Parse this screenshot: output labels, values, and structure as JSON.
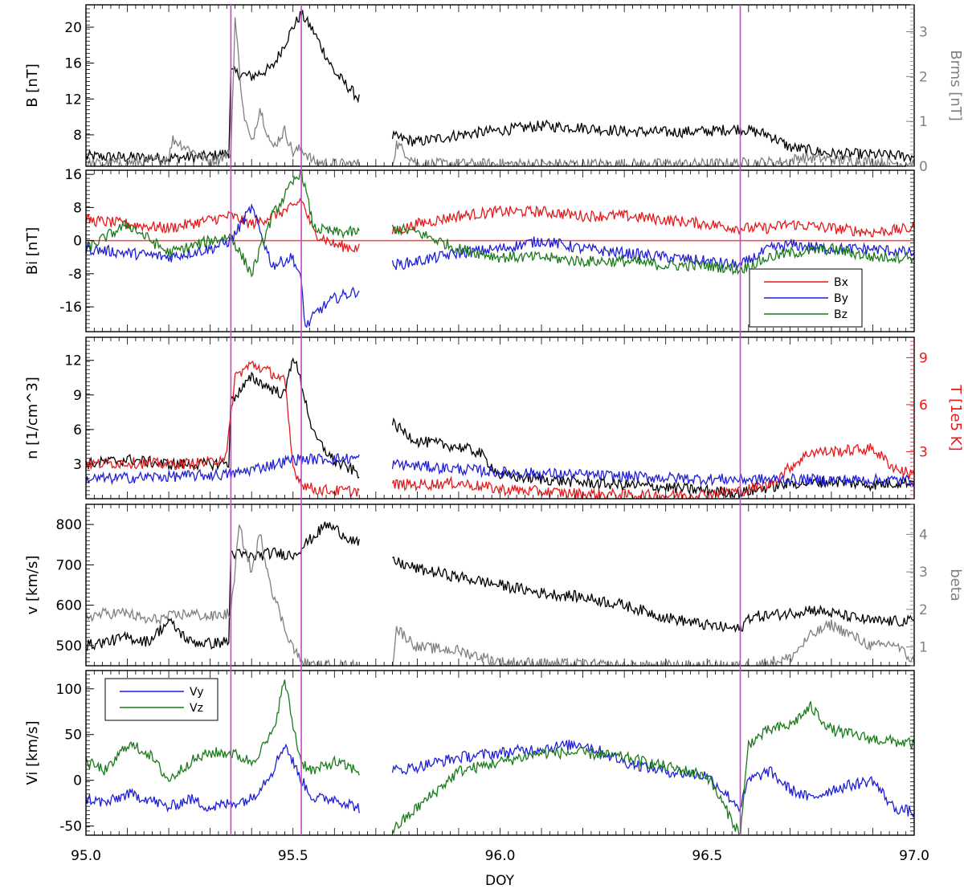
{
  "figure": {
    "xlabel": "DOY",
    "x_ticks": [
      "95.0",
      "95.5",
      "96.0",
      "96.5",
      "97.0"
    ],
    "vertical_markers": [
      95.35,
      95.52,
      96.58
    ],
    "colors": {
      "black": "#000000",
      "gray": "#808080",
      "red": "#e41a1c",
      "blue": "#1f1fd6",
      "green": "#1b7a1b",
      "marker": "#cc44cc",
      "zero_line": "#ff4040"
    }
  },
  "chart_data": [
    {
      "type": "line",
      "ylabel": "B [nT]",
      "y2label": "Brms [nT]",
      "xlim": [
        95.0,
        97.0
      ],
      "ylim": [
        4.5,
        22.5
      ],
      "y2lim": [
        0,
        3.6
      ],
      "yticks": [
        "8",
        "12",
        "16",
        "20"
      ],
      "y2ticks": [
        "0",
        "1",
        "2",
        "3"
      ],
      "data_gap": [
        95.66,
        95.74
      ],
      "series": [
        {
          "axis": "left",
          "color": "black",
          "x": [
            95.0,
            95.1,
            95.2,
            95.3,
            95.345,
            95.35,
            95.4,
            95.45,
            95.5,
            95.52,
            95.55,
            95.6,
            95.66,
            95.74,
            95.8,
            95.9,
            96.0,
            96.1,
            96.2,
            96.3,
            96.4,
            96.5,
            96.58,
            96.65,
            96.7,
            96.8,
            96.9,
            97.0
          ],
          "values": [
            5.6,
            5.5,
            5.4,
            5.6,
            6.0,
            15.0,
            14.5,
            15.5,
            20.0,
            21.5,
            19.5,
            15.0,
            12.0,
            7.8,
            7.2,
            8.0,
            8.5,
            9.0,
            8.8,
            8.4,
            8.3,
            8.4,
            8.7,
            8.0,
            6.6,
            5.9,
            5.8,
            5.6
          ]
        },
        {
          "axis": "right",
          "color": "gray",
          "x": [
            95.0,
            95.15,
            95.2,
            95.21,
            95.3,
            95.35,
            95.36,
            95.38,
            95.4,
            95.42,
            95.45,
            95.48,
            95.5,
            95.52,
            95.55,
            95.6,
            95.74,
            95.75,
            95.8,
            96.0,
            96.5,
            96.7,
            96.72,
            97.0
          ],
          "values": [
            0.05,
            0.1,
            0.2,
            0.6,
            0.1,
            0.3,
            3.3,
            1.2,
            0.5,
            1.3,
            0.4,
            0.8,
            0.3,
            0.4,
            0.1,
            0.05,
            0.05,
            0.5,
            0.05,
            0.05,
            0.05,
            0.1,
            0.2,
            0.05
          ]
        }
      ]
    },
    {
      "type": "line",
      "ylabel": "Bi [nT]",
      "xlim": [
        95.0,
        97.0
      ],
      "ylim": [
        -22,
        17
      ],
      "yticks": [
        "-16",
        "-8",
        "0",
        "8",
        "16"
      ],
      "zero_line": true,
      "legend": {
        "position": "bottom-right",
        "entries": [
          "Bx",
          "By",
          "Bz"
        ]
      },
      "data_gap": [
        95.66,
        95.74
      ],
      "series": [
        {
          "name": "Bx",
          "color": "red",
          "x": [
            95.0,
            95.1,
            95.2,
            95.3,
            95.35,
            95.4,
            95.45,
            95.5,
            95.52,
            95.55,
            95.6,
            95.66,
            95.74,
            95.8,
            95.9,
            96.0,
            96.1,
            96.2,
            96.3,
            96.4,
            96.5,
            96.58,
            96.65,
            96.7,
            96.8,
            96.9,
            97.0
          ],
          "values": [
            5,
            4,
            3,
            5,
            6,
            4,
            6,
            8,
            10,
            2,
            -1,
            -2,
            2,
            4,
            6,
            7,
            7,
            6,
            6,
            5,
            4,
            3,
            3,
            4,
            3,
            2,
            3
          ]
        },
        {
          "name": "By",
          "color": "blue",
          "x": [
            95.0,
            95.1,
            95.2,
            95.3,
            95.35,
            95.4,
            95.45,
            95.5,
            95.52,
            95.53,
            95.56,
            95.6,
            95.66,
            95.74,
            95.8,
            95.9,
            96.0,
            96.1,
            96.2,
            96.3,
            96.4,
            96.5,
            96.58,
            96.65,
            96.7,
            96.8,
            96.9,
            97.0
          ],
          "values": [
            -2,
            -3,
            -4,
            -2,
            0,
            8,
            -6,
            -4,
            -10,
            -21,
            -17,
            -14,
            -12,
            -6,
            -5,
            -3,
            -2,
            0,
            -2,
            -3,
            -4,
            -5,
            -6,
            -2,
            -1,
            -2,
            -2,
            -3
          ]
        },
        {
          "name": "Bz",
          "color": "green",
          "x": [
            95.0,
            95.1,
            95.2,
            95.3,
            95.35,
            95.4,
            95.45,
            95.5,
            95.52,
            95.55,
            95.6,
            95.66,
            95.74,
            95.8,
            95.9,
            96.0,
            96.1,
            96.2,
            96.3,
            96.4,
            96.5,
            96.58,
            96.65,
            96.7,
            96.8,
            96.9,
            97.0
          ],
          "values": [
            -2,
            4,
            -3,
            0,
            1,
            -8,
            6,
            14,
            17,
            3,
            2,
            2,
            3,
            2,
            -2,
            -4,
            -4,
            -5,
            -5,
            -6,
            -6,
            -7,
            -4,
            -3,
            -2,
            -4,
            -4
          ]
        }
      ]
    },
    {
      "type": "line",
      "ylabel": "n [1/cm^3]",
      "y2label": "T [1e5 K]",
      "xlim": [
        95.0,
        97.0
      ],
      "ylim": [
        0,
        14
      ],
      "y2lim": [
        0,
        10.3
      ],
      "yticks": [
        "3",
        "6",
        "9",
        "12"
      ],
      "y2ticks": [
        "3",
        "6",
        "9"
      ],
      "data_gap": [
        95.66,
        95.74
      ],
      "series": [
        {
          "axis": "left",
          "color": "black",
          "x": [
            95.0,
            95.1,
            95.2,
            95.3,
            95.345,
            95.35,
            95.4,
            95.45,
            95.48,
            95.5,
            95.52,
            95.55,
            95.6,
            95.66,
            95.74,
            95.8,
            95.9,
            95.95,
            96.0,
            96.2,
            96.4,
            96.5,
            96.58,
            96.65,
            96.7,
            96.8,
            96.9,
            97.0
          ],
          "values": [
            3.0,
            3.4,
            3.0,
            3.0,
            3.1,
            8.5,
            10.5,
            9.5,
            9.0,
            12.5,
            10.0,
            5.5,
            3.2,
            2.2,
            6.5,
            5.0,
            4.5,
            4.0,
            2.0,
            1.4,
            1.0,
            0.7,
            0.5,
            1.0,
            1.3,
            1.5,
            1.2,
            1.5
          ]
        },
        {
          "axis": "right",
          "color": "red",
          "x": [
            95.0,
            95.1,
            95.2,
            95.3,
            95.34,
            95.36,
            95.4,
            95.45,
            95.48,
            95.5,
            95.52,
            95.55,
            95.6,
            95.66,
            95.74,
            95.8,
            95.9,
            96.0,
            96.2,
            96.4,
            96.5,
            96.58,
            96.65,
            96.7,
            96.75,
            96.8,
            96.9,
            96.95,
            97.0
          ],
          "values": [
            2.2,
            2.3,
            2.2,
            2.3,
            2.8,
            7.8,
            8.6,
            8.0,
            7.5,
            2.0,
            1.0,
            0.6,
            0.5,
            0.5,
            0.9,
            0.9,
            1.0,
            0.6,
            0.3,
            0.2,
            0.3,
            0.5,
            0.9,
            2.0,
            3.0,
            3.0,
            3.2,
            2.0,
            1.5
          ]
        },
        {
          "axis": "left",
          "color": "blue",
          "x": [
            95.0,
            95.35,
            95.5,
            95.66,
            95.74,
            96.0,
            96.5,
            97.0
          ],
          "values": [
            1.7,
            2.1,
            3.4,
            3.5,
            3.0,
            2.3,
            1.7,
            1.6
          ]
        }
      ]
    },
    {
      "type": "line",
      "ylabel": "v [km/s]",
      "y2label": "beta",
      "xlim": [
        95.0,
        97.0
      ],
      "ylim": [
        450,
        850
      ],
      "y2lim": [
        0.5,
        4.8
      ],
      "yticks": [
        "500",
        "600",
        "700",
        "800"
      ],
      "y2ticks": [
        "1",
        "2",
        "3",
        "4"
      ],
      "data_gap": [
        95.66,
        95.74
      ],
      "series": [
        {
          "axis": "left",
          "color": "black",
          "x": [
            95.0,
            95.05,
            95.1,
            95.15,
            95.2,
            95.25,
            95.3,
            95.345,
            95.35,
            95.4,
            95.45,
            95.5,
            95.55,
            95.58,
            95.6,
            95.66,
            95.74,
            95.8,
            95.9,
            96.0,
            96.1,
            96.2,
            96.3,
            96.4,
            96.5,
            96.58,
            96.6,
            96.7,
            96.75,
            96.8,
            96.9,
            97.0
          ],
          "values": [
            500,
            510,
            520,
            510,
            560,
            510,
            505,
            510,
            730,
            720,
            730,
            725,
            770,
            800,
            790,
            750,
            710,
            690,
            670,
            650,
            630,
            620,
            600,
            570,
            550,
            540,
            570,
            580,
            590,
            580,
            560,
            560
          ]
        },
        {
          "axis": "right",
          "color": "gray",
          "x": [
            95.0,
            95.05,
            95.1,
            95.15,
            95.2,
            95.25,
            95.3,
            95.35,
            95.37,
            95.4,
            95.42,
            95.45,
            95.48,
            95.5,
            95.52,
            95.55,
            95.66,
            95.74,
            95.75,
            95.8,
            95.9,
            96.0,
            96.3,
            96.5,
            96.6,
            96.7,
            96.75,
            96.8,
            96.85,
            96.9,
            96.95,
            97.0
          ],
          "values": [
            1.8,
            1.9,
            1.9,
            1.7,
            1.8,
            1.9,
            1.8,
            1.9,
            4.2,
            3.0,
            4.0,
            2.5,
            1.5,
            1.0,
            0.6,
            0.5,
            0.5,
            0.5,
            1.5,
            1.0,
            0.9,
            0.6,
            0.5,
            0.5,
            0.5,
            0.7,
            1.3,
            1.6,
            1.3,
            1.0,
            1.1,
            0.6
          ]
        }
      ]
    },
    {
      "type": "line",
      "ylabel": "Vi [km/s]",
      "xlim": [
        95.0,
        97.0
      ],
      "ylim": [
        -60,
        120
      ],
      "yticks": [
        "-50",
        "0",
        "50",
        "100"
      ],
      "legend": {
        "position": "top-left",
        "entries": [
          "Vy",
          "Vz"
        ]
      },
      "data_gap": [
        95.66,
        95.74
      ],
      "series": [
        {
          "name": "Vy",
          "color": "blue",
          "x": [
            95.0,
            95.05,
            95.1,
            95.15,
            95.2,
            95.25,
            95.3,
            95.35,
            95.4,
            95.45,
            95.48,
            95.5,
            95.52,
            95.55,
            95.6,
            95.66,
            95.74,
            95.8,
            95.9,
            96.0,
            96.1,
            96.2,
            96.25,
            96.3,
            96.4,
            96.5,
            96.58,
            96.6,
            96.65,
            96.7,
            96.75,
            96.8,
            96.9,
            96.95,
            97.0
          ],
          "values": [
            -20,
            -25,
            -15,
            -20,
            -30,
            -20,
            -30,
            -25,
            -20,
            10,
            40,
            20,
            0,
            -20,
            -20,
            -30,
            10,
            15,
            25,
            30,
            35,
            40,
            30,
            20,
            10,
            5,
            -30,
            0,
            10,
            -10,
            -20,
            -10,
            0,
            -30,
            -35
          ]
        },
        {
          "name": "Vz",
          "color": "green",
          "x": [
            95.0,
            95.05,
            95.1,
            95.15,
            95.2,
            95.25,
            95.3,
            95.35,
            95.4,
            95.45,
            95.48,
            95.5,
            95.52,
            95.55,
            95.6,
            95.66,
            95.74,
            95.8,
            95.85,
            95.9,
            96.0,
            96.1,
            96.2,
            96.3,
            96.4,
            96.5,
            96.58,
            96.6,
            96.65,
            96.7,
            96.75,
            96.8,
            96.9,
            97.0
          ],
          "values": [
            20,
            10,
            40,
            30,
            0,
            20,
            30,
            30,
            20,
            50,
            110,
            60,
            20,
            10,
            20,
            10,
            -55,
            -30,
            -10,
            10,
            20,
            30,
            30,
            25,
            15,
            5,
            -60,
            40,
            55,
            60,
            80,
            55,
            45,
            40
          ]
        }
      ]
    }
  ]
}
